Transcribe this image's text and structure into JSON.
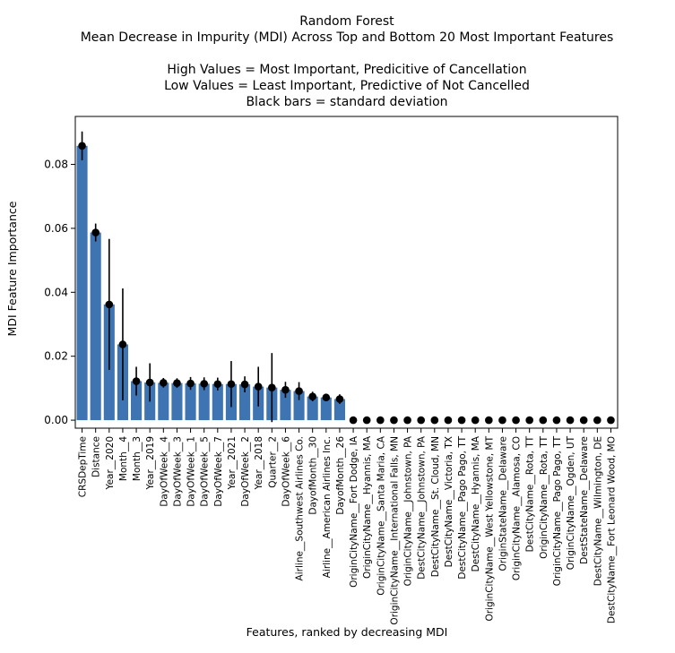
{
  "chart_data": {
    "type": "bar",
    "title_lines": [
      "Random Forest",
      "Mean Decrease in Impurity (MDI) Across Top and Bottom 20 Most Important Features",
      "",
      "High Values = Most Important, Predicitive of Cancellation",
      "Low Values = Least Important, Predictive of Not Cancelled",
      "Black bars = standard deviation"
    ],
    "xlabel": "Features, ranked by decreasing MDI",
    "ylabel": "MDI Feature Importance",
    "ylim": [
      -0.0025,
      0.095
    ],
    "yticks": [
      "0.00",
      "0.02",
      "0.04",
      "0.06",
      "0.08"
    ],
    "categories": [
      "CRSDepTime",
      "Distance",
      "Year__2020",
      "Month__4",
      "Month__3",
      "Year__2019",
      "DayOfWeek__4",
      "DayOfWeek__3",
      "DayOfWeek__1",
      "DayOfWeek__5",
      "DayOfWeek__7",
      "Year__2021",
      "DayOfWeek__2",
      "Year__2018",
      "Quarter__2",
      "DayOfWeek__6",
      "Airline__Southwest Airlines Co.",
      "DayofMonth__30",
      "Airline__American Airlines Inc.",
      "DayofMonth__26",
      "OriginCityName__Fort Dodge, IA",
      "OriginCityName__Hyannis, MA",
      "OriginCityName__Santa Maria, CA",
      "OriginCityName__International Falls, MN",
      "OriginCityName__Johnstown, PA",
      "DestCityName__Johnstown, PA",
      "DestCityName__St. Cloud, MN",
      "DestCityName__Victoria, TX",
      "DestCityName__Pago Pago, TT",
      "DestCityName__Hyannis, MA",
      "OriginCityName__West Yellowstone, MT",
      "OriginStateName__Delaware",
      "OriginCityName__Alamosa, CO",
      "DestCityName__Rota, TT",
      "OriginCityName__Rota, TT",
      "OriginCityName__Pago Pago, TT",
      "OriginCityName__Ogden, UT",
      "DestStateName__Delaware",
      "DestCityName__Wilmington, DE",
      "DestCityName__Fort Leonard Wood, MO"
    ],
    "values": [
      0.0858,
      0.0587,
      0.0362,
      0.0237,
      0.0122,
      0.0118,
      0.0117,
      0.0116,
      0.0115,
      0.0114,
      0.0113,
      0.0113,
      0.0112,
      0.0105,
      0.0102,
      0.0095,
      0.0091,
      0.0074,
      0.0071,
      0.0066,
      0,
      0,
      0,
      0,
      0,
      0,
      0,
      0,
      0,
      0,
      0,
      0,
      0,
      0,
      0,
      0,
      0,
      0,
      0,
      0
    ],
    "std": [
      0.0045,
      0.0028,
      0.0205,
      0.0175,
      0.0045,
      0.006,
      0.0015,
      0.0015,
      0.002,
      0.002,
      0.002,
      0.0072,
      0.0025,
      0.0062,
      0.0108,
      0.0025,
      0.0028,
      0.0015,
      0.001,
      0.0015,
      0,
      0,
      0,
      0,
      0,
      0,
      0,
      0,
      0,
      0,
      0,
      0,
      0,
      0,
      0,
      0,
      0,
      0,
      0,
      0
    ],
    "bar_color": "#3f74b3",
    "errorbar_color": "#000000",
    "grid": false,
    "legend": "none"
  }
}
